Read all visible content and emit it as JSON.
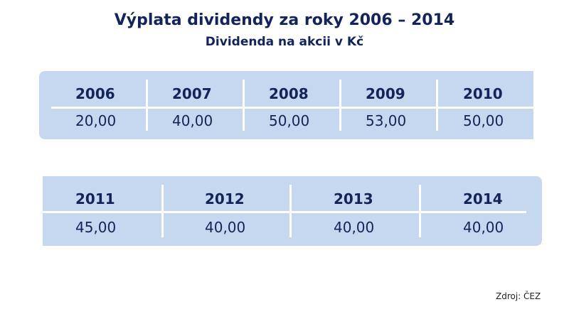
{
  "header": {
    "title": "Výplata dividendy za roky 2006 – 2014",
    "subtitle": "Dividenda na akcii v Kč"
  },
  "tables": [
    {
      "years": [
        "2006",
        "2007",
        "2008",
        "2009",
        "2010"
      ],
      "values": [
        "20,00",
        "40,00",
        "50,00",
        "53,00",
        "50,00"
      ]
    },
    {
      "years": [
        "2011",
        "2012",
        "2013",
        "2014"
      ],
      "values": [
        "45,00",
        "40,00",
        "40,00",
        "40,00"
      ]
    }
  ],
  "source": "Zdroj: ČEZ"
}
